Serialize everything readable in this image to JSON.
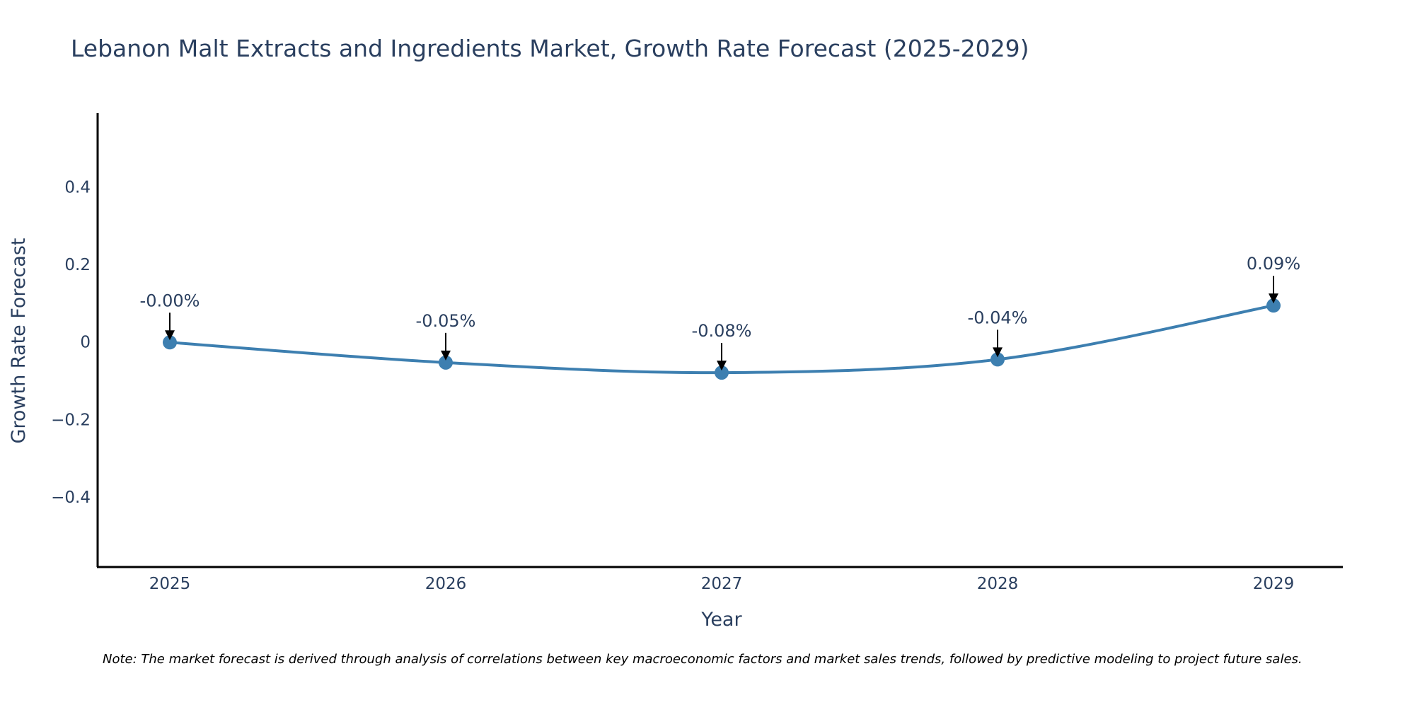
{
  "chart_data": {
    "type": "line",
    "title": "Lebanon Malt Extracts and Ingredients Market, Growth Rate Forecast (2025-2029)",
    "xlabel": "Year",
    "ylabel": "Growth Rate Forecast",
    "categories": [
      "2025",
      "2026",
      "2027",
      "2028",
      "2029"
    ],
    "series": [
      {
        "name": "Growth Rate Forecast",
        "values": [
          -0.001,
          -0.053,
          -0.079,
          -0.045,
          0.094
        ]
      }
    ],
    "data_labels": [
      "-0.00%",
      "-0.05%",
      "-0.08%",
      "-0.04%",
      "0.09%"
    ],
    "ylim": [
      -0.58,
      0.59
    ],
    "yticks": [
      -0.4,
      -0.2,
      0,
      0.2,
      0.4
    ],
    "ytick_labels": [
      "−0.4",
      "−0.2",
      "0",
      "0.2",
      "0.4"
    ],
    "grid": false,
    "line_color": "#3d7fb0",
    "marker_color": "#3d7fb0",
    "note": "Note: The market forecast is derived through analysis of correlations between key macroeconomic factors and market sales trends, followed by predictive modeling to project future sales."
  }
}
